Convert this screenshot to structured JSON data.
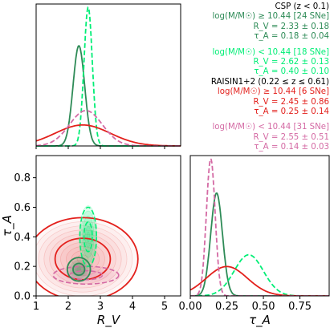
{
  "colors": {
    "csp_high": "#2e8b57",
    "csp_low": "#00ee76",
    "raisin_high": "#e3201c",
    "raisin_low": "#d46aa4",
    "black": "#000000"
  },
  "legend": [
    {
      "text": "CSP (z < 0.1)",
      "color": "#000000"
    },
    {
      "text": "log(M/M☉) ≥ 10.44 [24 SNe]",
      "color": "#2e8b57"
    },
    {
      "text": "R_V = 2.33 ± 0.18",
      "color": "#2e8b57"
    },
    {
      "text": "τ_A = 0.18 ± 0.04",
      "color": "#2e8b57"
    },
    {
      "text": "log(M/M☉) < 10.44 [18 SNe]",
      "color": "#00ee76",
      "gap": true
    },
    {
      "text": "R_V = 2.62 ± 0.13",
      "color": "#00ee76"
    },
    {
      "text": "τ_A = 0.40 ± 0.10",
      "color": "#00ee76"
    },
    {
      "text": "RAISIN1+2 (0.22 ≤ z ≤ 0.61)",
      "color": "#000000"
    },
    {
      "text": "log(M/M☉) ≥ 10.44 [6 SNe]",
      "color": "#e3201c"
    },
    {
      "text": "R_V = 2.45 ± 0.86",
      "color": "#e3201c"
    },
    {
      "text": "τ_A = 0.25 ± 0.14",
      "color": "#e3201c"
    },
    {
      "text": "log(M/M☉) < 10.44 [31 SNe]",
      "color": "#d46aa4",
      "gap": true
    },
    {
      "text": "R_V = 2.55 ± 0.51",
      "color": "#d46aa4"
    },
    {
      "text": "τ_A = 0.14 ± 0.03",
      "color": "#d46aa4"
    }
  ],
  "chart_data": [
    {
      "panel": "marginal_RV",
      "type": "line",
      "xlim": [
        1,
        5.5
      ],
      "xticks": [
        1,
        2,
        3,
        4,
        5
      ],
      "series": [
        {
          "name": "CSP high mass",
          "color": "#2e8b57",
          "style": "solid",
          "center": 2.33,
          "sigma": 0.18
        },
        {
          "name": "CSP low mass",
          "color": "#00ee76",
          "style": "dashed",
          "center": 2.62,
          "sigma": 0.13
        },
        {
          "name": "RAISIN high mass",
          "color": "#e3201c",
          "style": "solid",
          "center": 2.45,
          "sigma": 0.86
        },
        {
          "name": "RAISIN low mass",
          "color": "#d46aa4",
          "style": "dashed",
          "center": 2.55,
          "sigma": 0.51
        }
      ]
    },
    {
      "panel": "joint",
      "type": "scatter",
      "xlabel": "R_V",
      "ylabel": "τ_A",
      "xlim": [
        1,
        5.5
      ],
      "ylim": [
        0,
        0.95
      ],
      "xticks": [
        1,
        2,
        3,
        4,
        5
      ],
      "yticks": [
        0.0,
        0.2,
        0.4,
        0.6,
        0.8
      ],
      "contours": [
        {
          "name": "CSP high mass",
          "color": "#2e8b57",
          "center": [
            2.33,
            0.18
          ],
          "sigma": [
            0.18,
            0.04
          ]
        },
        {
          "name": "CSP low mass",
          "color": "#00ee76",
          "center": [
            2.62,
            0.4
          ],
          "sigma": [
            0.13,
            0.1
          ]
        },
        {
          "name": "RAISIN high mass",
          "color": "#e3201c",
          "center": [
            2.45,
            0.25
          ],
          "sigma": [
            0.86,
            0.14
          ]
        },
        {
          "name": "RAISIN low mass",
          "color": "#d46aa4",
          "center": [
            2.55,
            0.14
          ],
          "sigma": [
            0.51,
            0.03
          ]
        }
      ]
    },
    {
      "panel": "marginal_tauA",
      "type": "line",
      "xlabel": "τ_A",
      "xlim": [
        0,
        0.95
      ],
      "xticks": [
        0.0,
        0.25,
        0.5,
        0.75
      ],
      "series": [
        {
          "name": "CSP high mass",
          "color": "#2e8b57",
          "style": "solid",
          "center": 0.18,
          "sigma": 0.04
        },
        {
          "name": "CSP low mass",
          "color": "#00ee76",
          "style": "dashed",
          "center": 0.4,
          "sigma": 0.1
        },
        {
          "name": "RAISIN high mass",
          "color": "#e3201c",
          "style": "solid",
          "center": 0.25,
          "sigma": 0.14
        },
        {
          "name": "RAISIN low mass",
          "color": "#d46aa4",
          "style": "dashed",
          "center": 0.14,
          "sigma": 0.03
        }
      ]
    }
  ]
}
